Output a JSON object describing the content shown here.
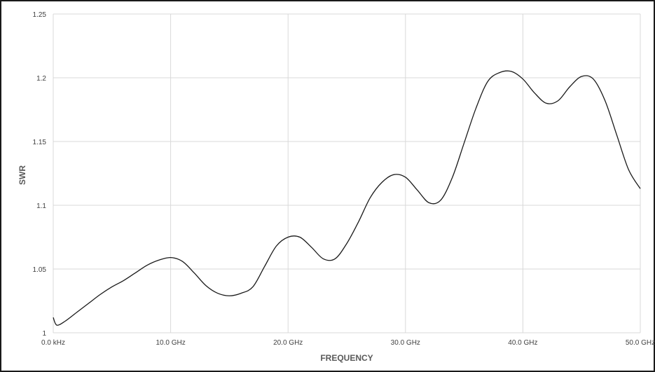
{
  "chart_data": {
    "type": "line",
    "title": "",
    "xlabel": "FREQUENCY",
    "ylabel": "SWR",
    "x_unit": "GHz",
    "xlim": [
      0,
      50
    ],
    "ylim": [
      1,
      1.25
    ],
    "grid": true,
    "legend": "none",
    "line_color": "#1a1a1a",
    "grid_color": "#d9d9d9",
    "x_ticks": [
      {
        "value": 0,
        "label": "0.0 kHz"
      },
      {
        "value": 10,
        "label": "10.0 GHz"
      },
      {
        "value": 20,
        "label": "20.0 GHz"
      },
      {
        "value": 30,
        "label": "30.0 GHz"
      },
      {
        "value": 40,
        "label": "40.0 GHz"
      },
      {
        "value": 50,
        "label": "50.0 GHz"
      }
    ],
    "y_ticks": [
      {
        "value": 1,
        "label": "1"
      },
      {
        "value": 1.05,
        "label": "1.05"
      },
      {
        "value": 1.1,
        "label": "1.1"
      },
      {
        "value": 1.15,
        "label": "1.15"
      },
      {
        "value": 1.2,
        "label": "1.2"
      },
      {
        "value": 1.25,
        "label": "1.25"
      }
    ],
    "series": [
      {
        "x": [
          0,
          0.3,
          1,
          2,
          3,
          4,
          5,
          6,
          7,
          8,
          9,
          10,
          11,
          12,
          13,
          14,
          15,
          16,
          17,
          18,
          19,
          20,
          21,
          22,
          23,
          24,
          25,
          26,
          27,
          28,
          29,
          30,
          31,
          32,
          33,
          34,
          35,
          36,
          37,
          38,
          39,
          40,
          41,
          42,
          43,
          44,
          45,
          46,
          47,
          48,
          49,
          50
        ],
        "y": [
          1.012,
          1.006,
          1.009,
          1.016,
          1.023,
          1.03,
          1.036,
          1.041,
          1.047,
          1.053,
          1.057,
          1.059,
          1.056,
          1.047,
          1.037,
          1.031,
          1.029,
          1.031,
          1.036,
          1.052,
          1.068,
          1.075,
          1.075,
          1.067,
          1.058,
          1.058,
          1.07,
          1.087,
          1.106,
          1.118,
          1.124,
          1.122,
          1.112,
          1.102,
          1.104,
          1.122,
          1.149,
          1.176,
          1.197,
          1.204,
          1.205,
          1.199,
          1.188,
          1.18,
          1.182,
          1.193,
          1.201,
          1.199,
          1.182,
          1.155,
          1.128,
          1.113
        ]
      }
    ]
  }
}
